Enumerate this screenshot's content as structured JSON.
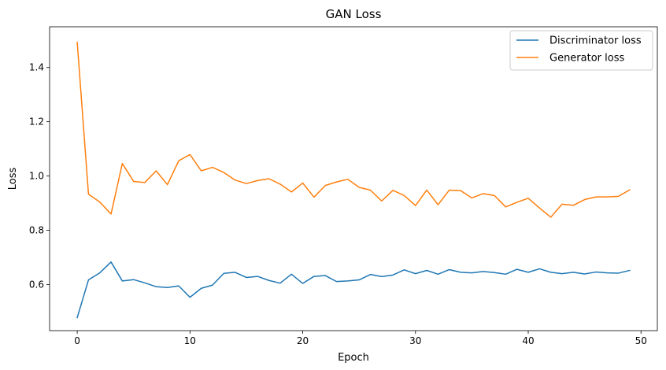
{
  "chart_data": {
    "type": "line",
    "title": "GAN Loss",
    "xlabel": "Epoch",
    "ylabel": "Loss",
    "xlim": [
      -2.45,
      51.45
    ],
    "ylim": [
      0.43,
      1.55
    ],
    "xticks": [
      0,
      10,
      20,
      30,
      40,
      50
    ],
    "xtick_labels": [
      "0",
      "10",
      "20",
      "30",
      "40",
      "50"
    ],
    "yticks": [
      0.6,
      0.8,
      1.0,
      1.2,
      1.4
    ],
    "ytick_labels": [
      "0.6",
      "0.8",
      "1.0",
      "1.2",
      "1.4"
    ],
    "grid": false,
    "legend_position": "top-right",
    "x": [
      0,
      1,
      2,
      3,
      4,
      5,
      6,
      7,
      8,
      9,
      10,
      11,
      12,
      13,
      14,
      15,
      16,
      17,
      18,
      19,
      20,
      21,
      22,
      23,
      24,
      25,
      26,
      27,
      28,
      29,
      30,
      31,
      32,
      33,
      34,
      35,
      36,
      37,
      38,
      39,
      40,
      41,
      42,
      43,
      44,
      45,
      46,
      47,
      48,
      49
    ],
    "series": [
      {
        "name": "Discriminator loss",
        "color": "#1f77b4",
        "values": [
          0.478,
          0.617,
          0.643,
          0.683,
          0.613,
          0.618,
          0.606,
          0.592,
          0.589,
          0.595,
          0.553,
          0.586,
          0.598,
          0.641,
          0.645,
          0.626,
          0.63,
          0.615,
          0.605,
          0.638,
          0.604,
          0.63,
          0.633,
          0.611,
          0.613,
          0.617,
          0.637,
          0.629,
          0.635,
          0.654,
          0.64,
          0.652,
          0.638,
          0.655,
          0.645,
          0.643,
          0.648,
          0.644,
          0.638,
          0.656,
          0.645,
          0.658,
          0.645,
          0.64,
          0.645,
          0.639,
          0.646,
          0.643,
          0.642,
          0.652
        ]
      },
      {
        "name": "Generator loss",
        "color": "#ff7f0e",
        "values": [
          1.493,
          0.933,
          0.904,
          0.86,
          1.046,
          0.98,
          0.976,
          1.019,
          0.968,
          1.056,
          1.079,
          1.019,
          1.032,
          1.013,
          0.985,
          0.972,
          0.983,
          0.99,
          0.97,
          0.941,
          0.974,
          0.922,
          0.965,
          0.978,
          0.988,
          0.958,
          0.948,
          0.908,
          0.947,
          0.928,
          0.891,
          0.948,
          0.894,
          0.948,
          0.946,
          0.919,
          0.935,
          0.928,
          0.886,
          0.903,
          0.918,
          0.882,
          0.848,
          0.896,
          0.892,
          0.913,
          0.923,
          0.923,
          0.925,
          0.949
        ]
      }
    ]
  }
}
